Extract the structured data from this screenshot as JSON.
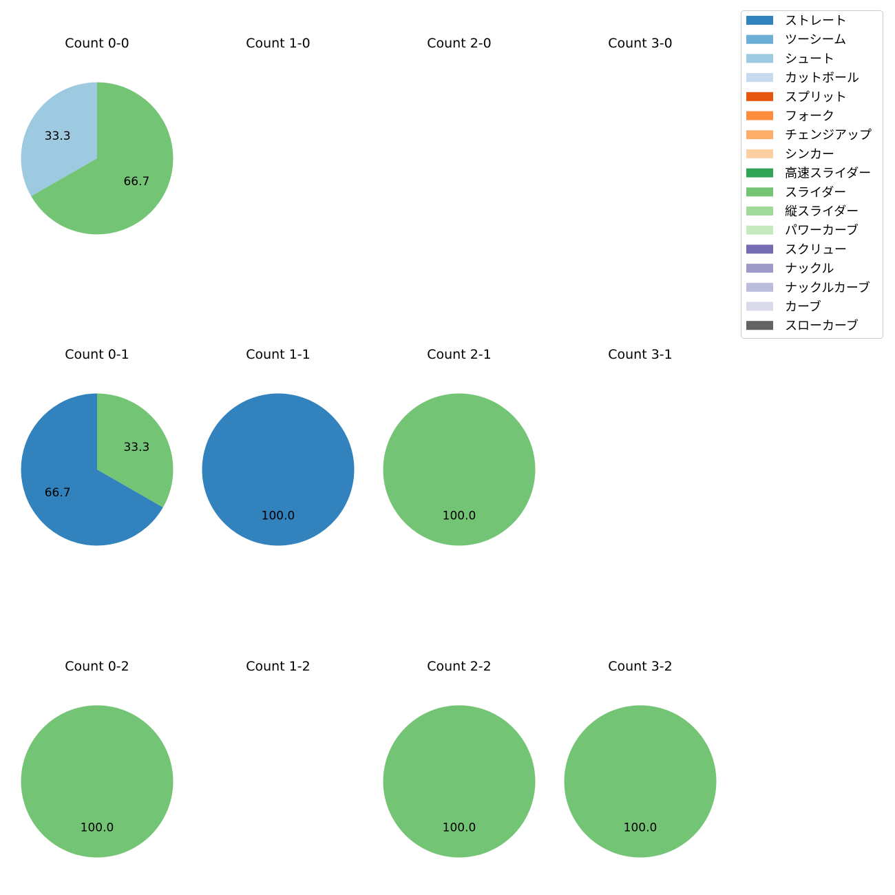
{
  "chart_data": {
    "type": "pie",
    "categories": [
      "ストレート",
      "ツーシーム",
      "シュート",
      "カットボール",
      "スプリット",
      "フォーク",
      "チェンジアップ",
      "シンカー",
      "高速スライダー",
      "スライダー",
      "縦スライダー",
      "パワーカーブ",
      "スクリュー",
      "ナックル",
      "ナックルカーブ",
      "カーブ",
      "スローカーブ"
    ],
    "colors": [
      "#3182bd",
      "#6baed6",
      "#9ecae1",
      "#c6dbef",
      "#e6550d",
      "#fd8d3c",
      "#fdae6b",
      "#fdd0a2",
      "#31a354",
      "#74c476",
      "#a1d99b",
      "#c7e9c0",
      "#756bb1",
      "#9e9ac8",
      "#bcbddc",
      "#dadaeb",
      "#636363"
    ],
    "legend_position": "top-right",
    "charts": [
      {
        "title": "Count 0-0",
        "values": {
          "シュート": 33.3,
          "スライダー": 66.7
        },
        "labels": [
          "33.3",
          "66.7"
        ]
      },
      {
        "title": "Count 1-0",
        "values": {},
        "labels": []
      },
      {
        "title": "Count 2-0",
        "values": {},
        "labels": []
      },
      {
        "title": "Count 3-0",
        "values": {},
        "labels": []
      },
      {
        "title": "Count 0-1",
        "values": {
          "ストレート": 66.7,
          "スライダー": 33.3
        },
        "labels": [
          "66.7",
          "33.3"
        ]
      },
      {
        "title": "Count 1-1",
        "values": {
          "ストレート": 100.0
        },
        "labels": [
          "100.0"
        ]
      },
      {
        "title": "Count 2-1",
        "values": {
          "スライダー": 100.0
        },
        "labels": [
          "100.0"
        ]
      },
      {
        "title": "Count 3-1",
        "values": {},
        "labels": []
      },
      {
        "title": "Count 0-2",
        "values": {
          "スライダー": 100.0
        },
        "labels": [
          "100.0"
        ]
      },
      {
        "title": "Count 1-2",
        "values": {},
        "labels": []
      },
      {
        "title": "Count 2-2",
        "values": {
          "スライダー": 100.0
        },
        "labels": [
          "100.0"
        ]
      },
      {
        "title": "Count 3-2",
        "values": {
          "スライダー": 100.0
        },
        "labels": [
          "100.0"
        ]
      }
    ]
  }
}
